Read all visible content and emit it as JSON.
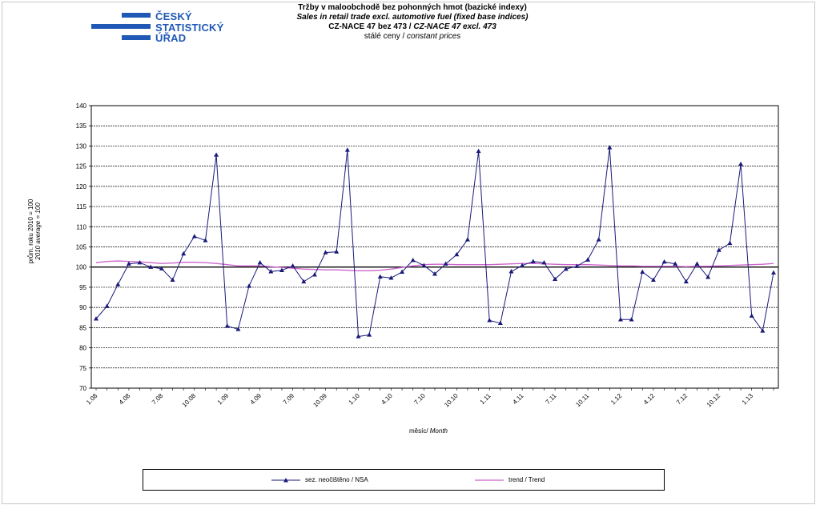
{
  "logo": {
    "lines": [
      "ČESKÝ",
      "STATISTICKÝ",
      "ÚŘAD"
    ]
  },
  "header": {
    "title_cz": "Tržby v maloobchodě bez pohonných  hmot (bazické indexy)",
    "title_en": "Sales in retail trade excl. automotive fuel (fixed base indices)",
    "nace_cz": "CZ-NACE  47 bez 473 / ",
    "nace_en": "CZ-NACE 47 excl. 473",
    "prices_cz": "stálé ceny / ",
    "prices_en": "constant  prices"
  },
  "colors": {
    "nsa": "#1a1a7a",
    "trend": "#cc66cc",
    "logo": "#1f58b5"
  },
  "chart_data": {
    "type": "line",
    "xlabel_cz": "měsíc/ ",
    "xlabel_en": "Month",
    "ylabel_cz": "prům. roku 2010 = 100",
    "ylabel_en": "2010 average = 100",
    "ylim": [
      70,
      140
    ],
    "yticks": [
      70,
      75,
      80,
      85,
      90,
      95,
      100,
      105,
      110,
      115,
      120,
      125,
      130,
      135,
      140
    ],
    "grid": true,
    "legend_position": "bottom",
    "x": [
      "1.08",
      "2.08",
      "3.08",
      "4.08",
      "5.08",
      "6.08",
      "7.08",
      "8.08",
      "9.08",
      "10.08",
      "11.08",
      "12.08",
      "1.09",
      "2.09",
      "3.09",
      "4.09",
      "5.09",
      "6.09",
      "7.09",
      "8.09",
      "9.09",
      "10.09",
      "11.09",
      "12.09",
      "1.10",
      "2.10",
      "3.10",
      "4.10",
      "5.10",
      "6.10",
      "7.10",
      "8.10",
      "9.10",
      "10.10",
      "11.10",
      "12.10",
      "1.11",
      "2.11",
      "3.11",
      "4.11",
      "5.11",
      "6.11",
      "7.11",
      "8.11",
      "9.11",
      "10.11",
      "11.11",
      "12.11",
      "1.12",
      "2.12",
      "3.12",
      "4.12",
      "5.12",
      "6.12",
      "7.12",
      "8.12",
      "9.12",
      "10.12",
      "11.12",
      "12.12",
      "1.13",
      "2.13",
      "3.13"
    ],
    "xtick_labels": [
      "1.08",
      "4.08",
      "7.08",
      "10.08",
      "1.09",
      "4.09",
      "7.09",
      "10.09",
      "1.10",
      "4.10",
      "7.10",
      "10.10",
      "1.11",
      "4.11",
      "7.11",
      "10.11",
      "1.12",
      "4.12",
      "7.12",
      "10.12",
      "1.13"
    ],
    "series": [
      {
        "name": "sez. neočištěno / NSA",
        "marker": "triangle",
        "values": [
          87.2,
          90.3,
          95.7,
          100.8,
          101.1,
          100.0,
          99.6,
          96.8,
          103.3,
          107.6,
          106.6,
          127.8,
          85.4,
          84.6,
          95.3,
          101.1,
          98.9,
          99.2,
          100.3,
          96.4,
          98.1,
          103.6,
          103.8,
          129.0,
          82.8,
          83.2,
          97.6,
          97.3,
          98.8,
          101.7,
          100.4,
          98.3,
          100.8,
          103.1,
          106.8,
          128.7,
          86.8,
          86.1,
          98.9,
          100.4,
          101.4,
          101.1,
          97.0,
          99.5,
          100.2,
          101.8,
          106.8,
          129.6,
          87.0,
          87.0,
          98.8,
          96.8,
          101.3,
          100.8,
          96.4,
          100.8,
          97.5,
          104.2,
          105.9,
          125.5,
          87.9,
          84.2,
          98.6
        ]
      },
      {
        "name": "trend / Trend",
        "marker": "none",
        "values": [
          101.1,
          101.4,
          101.5,
          101.4,
          101.3,
          101.1,
          100.9,
          101.0,
          101.2,
          101.2,
          101.1,
          100.9,
          100.6,
          100.3,
          100.3,
          100.3,
          100.1,
          99.9,
          99.7,
          99.5,
          99.4,
          99.3,
          99.3,
          99.2,
          99.1,
          99.1,
          99.2,
          99.5,
          99.9,
          100.3,
          100.6,
          100.7,
          100.7,
          100.6,
          100.6,
          100.6,
          100.6,
          100.7,
          100.8,
          100.9,
          100.9,
          100.8,
          100.7,
          100.6,
          100.6,
          100.6,
          100.5,
          100.4,
          100.3,
          100.3,
          100.2,
          100.2,
          100.2,
          100.2,
          100.1,
          100.2,
          100.2,
          100.3,
          100.4,
          100.5,
          100.6,
          100.7,
          100.9
        ]
      }
    ]
  }
}
